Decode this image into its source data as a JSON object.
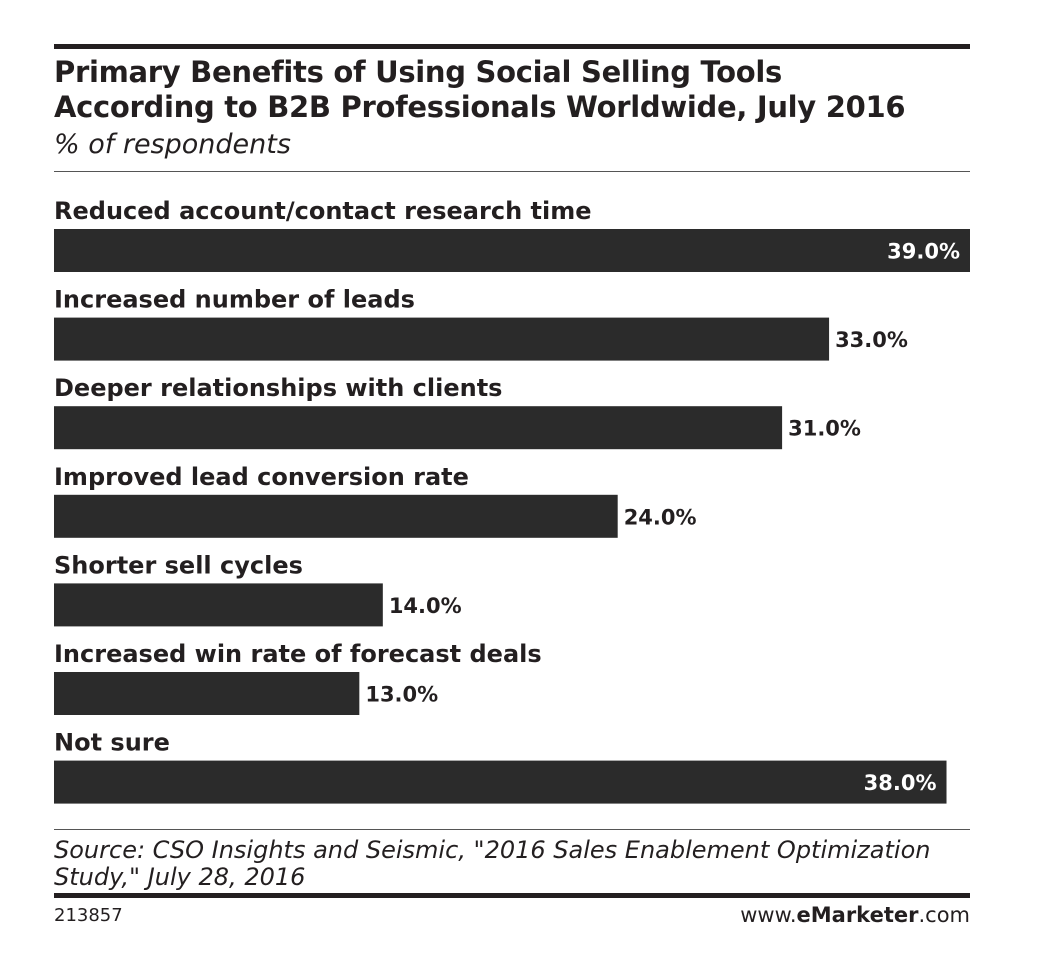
{
  "header": {
    "title_line1": "Primary Benefits of Using Social Selling Tools",
    "title_line2": "According to B2B Professionals Worldwide, July 2016",
    "subtitle": "% of respondents"
  },
  "chart_data": {
    "type": "bar",
    "orientation": "horizontal",
    "title": "Primary Benefits of Using Social Selling Tools According to B2B Professionals Worldwide, July 2016",
    "subtitle": "% of respondents",
    "categories": [
      "Reduced account/contact research time",
      "Increased number of leads",
      "Deeper relationships with clients",
      "Improved lead conversion rate",
      "Shorter sell cycles",
      "Increased win rate of forecast deals",
      "Not sure"
    ],
    "values": [
      39.0,
      33.0,
      31.0,
      24.0,
      14.0,
      13.0,
      38.0
    ],
    "value_labels": [
      "39.0%",
      "33.0%",
      "31.0%",
      "24.0%",
      "14.0%",
      "13.0%",
      "38.0%"
    ],
    "unit": "%",
    "xlim": [
      0,
      39
    ],
    "bar_color": "#2b2b2b",
    "grid": false,
    "legend": "none"
  },
  "footer": {
    "source_line1": "Source: CSO Insights and Seismic, \"2016 Sales Enablement Optimization",
    "source_line2": "Study,\" July 28, 2016",
    "chart_id": "213857",
    "brand_prefix": "www.",
    "brand_name": "eMarketer",
    "brand_suffix": ".com"
  },
  "colors": {
    "text": "#231f20",
    "bar": "#2b2b2b",
    "inside_label": "#ffffff"
  }
}
